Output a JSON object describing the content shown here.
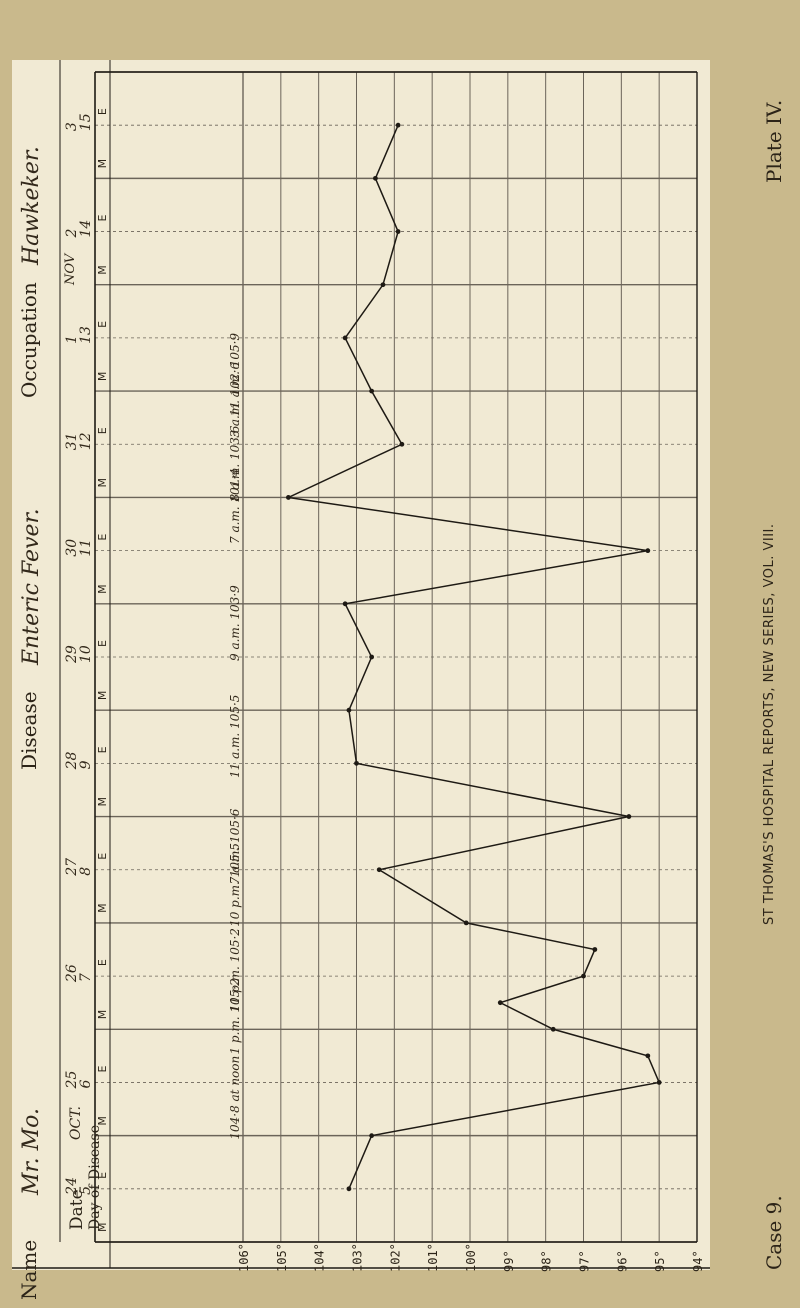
{
  "header": {
    "name_label": "Name",
    "name_value": "Mr. Mo.",
    "occupation_label": "Occupation",
    "occupation_value": "Hawkeker.",
    "disease_label": "Disease",
    "disease_value": "Enteric Fever.",
    "date_label": "Date",
    "day_of_disease_label": "Day of Disease",
    "month_oct": "OCT.",
    "month_nov": "NOV"
  },
  "side_text": {
    "journal": "ST THOMAS'S HOSPITAL REPORTS, NEW SERIES, VOL. VIII.",
    "plate": "Plate IV.",
    "case": "Case 9."
  },
  "colors": {
    "paper": "#f1ead4",
    "ink": "#1e1a14",
    "grid": "#6b6459",
    "background": "#c9b98c"
  },
  "chart_data": {
    "type": "line",
    "title": "",
    "xlabel": "",
    "ylabel": "",
    "ylim": [
      94,
      106
    ],
    "y_ticks": [
      "106°",
      "105°",
      "104°",
      "103°",
      "102°",
      "101°",
      "100°",
      "99°",
      "98°",
      "97°",
      "96°",
      "95°",
      "94°"
    ],
    "days": [
      {
        "date": "24",
        "day": "5"
      },
      {
        "date": "25",
        "day": "6"
      },
      {
        "date": "26",
        "day": "7"
      },
      {
        "date": "27",
        "day": "8"
      },
      {
        "date": "28",
        "day": "9"
      },
      {
        "date": "29",
        "day": "10"
      },
      {
        "date": "30",
        "day": "11"
      },
      {
        "date": "31",
        "day": "12"
      },
      {
        "date": "1",
        "day": "13"
      },
      {
        "date": "2",
        "day": "14"
      },
      {
        "date": "3",
        "day": "15"
      }
    ],
    "series": [
      {
        "points": [
          {
            "t": 0.5,
            "v": 103.2
          },
          {
            "t": 1,
            "v": 102.6
          },
          {
            "t": 1.5,
            "v": 95.0
          },
          {
            "t": 1.75,
            "v": 95.3
          },
          {
            "t": 2,
            "v": 97.8
          },
          {
            "t": 2.25,
            "v": 99.2
          },
          {
            "t": 2.5,
            "v": 97.0
          },
          {
            "t": 2.75,
            "v": 96.7
          },
          {
            "t": 3,
            "v": 100.1
          },
          {
            "t": 3.5,
            "v": 102.4
          },
          {
            "t": 4,
            "v": 95.8
          },
          {
            "t": 4.5,
            "v": 103.0
          },
          {
            "t": 5,
            "v": 103.2
          },
          {
            "t": 5.5,
            "v": 102.6
          },
          {
            "t": 6,
            "v": 103.3
          },
          {
            "t": 6.5,
            "v": 95.3
          },
          {
            "t": 7,
            "v": 104.8
          },
          {
            "t": 7.5,
            "v": 101.8
          },
          {
            "t": 8,
            "v": 102.6
          },
          {
            "t": 8.5,
            "v": 103.3
          },
          {
            "t": 9,
            "v": 102.3
          },
          {
            "t": 9.5,
            "v": 101.9
          },
          {
            "t": 10,
            "v": 102.5
          },
          {
            "t": 10.5,
            "v": 101.9
          }
        ]
      }
    ],
    "notes": [
      {
        "t": 1,
        "text": "104·8 at noon"
      },
      {
        "t": 1.8,
        "text": "1 p.m. 105·2"
      },
      {
        "t": 2.2,
        "text": "11 p.m. 105·2"
      },
      {
        "t": 3,
        "text": "10 p.m. 105·5"
      },
      {
        "t": 3.4,
        "text": "7 a.m. 105·6"
      },
      {
        "t": 4.4,
        "text": "11 a.m. 105·5"
      },
      {
        "t": 5.5,
        "text": "9 a.m. 103·9"
      },
      {
        "t": 6.6,
        "text": "7 a.m. 101·4"
      },
      {
        "t": 7,
        "text": "8 a.m. 103·6"
      },
      {
        "t": 7.6,
        "text": "3 a.m. 102·6"
      },
      {
        "t": 7.8,
        "text": "11 a.m. 105·9"
      }
    ]
  }
}
